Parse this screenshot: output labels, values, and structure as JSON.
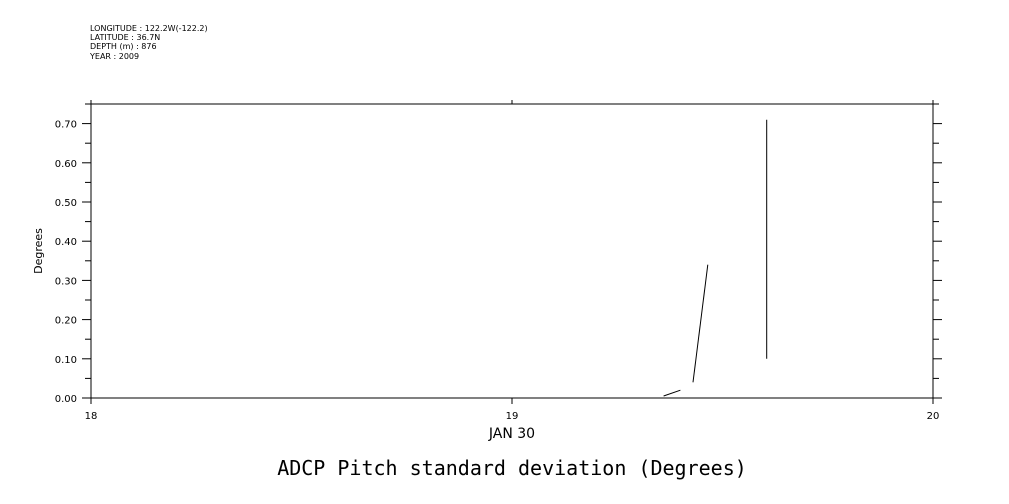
{
  "header": {
    "lines": [
      "LONGITUDE : 122.2W(-122.2)",
      "LATITUDE : 36.7N",
      "DEPTH (m) : 876",
      "YEAR : 2009"
    ]
  },
  "chart_data": {
    "type": "line",
    "title": "ADCP Pitch standard deviation (Degrees)",
    "xlabel": "JAN 30",
    "ylabel": "Degrees",
    "xlim": [
      18,
      20
    ],
    "ylim": [
      0,
      0.75
    ],
    "x_ticks": [
      18,
      19,
      20
    ],
    "x_tick_labels": [
      "18",
      "19",
      "20"
    ],
    "y_ticks": [
      0,
      0.1,
      0.2,
      0.3,
      0.4,
      0.5,
      0.6,
      0.7
    ],
    "y_tick_labels": [
      "0.00",
      "0.10",
      "0.20",
      "0.30",
      "0.40",
      "0.50",
      "0.60",
      "0.70"
    ],
    "grid": false,
    "segments": [
      {
        "x": [
          19.36,
          19.4
        ],
        "y": [
          0.005,
          0.02
        ]
      },
      {
        "x": [
          19.43,
          19.465
        ],
        "y": [
          0.04,
          0.34
        ]
      },
      {
        "x": [
          19.605,
          19.605
        ],
        "y": [
          0.1,
          0.71
        ]
      }
    ]
  }
}
